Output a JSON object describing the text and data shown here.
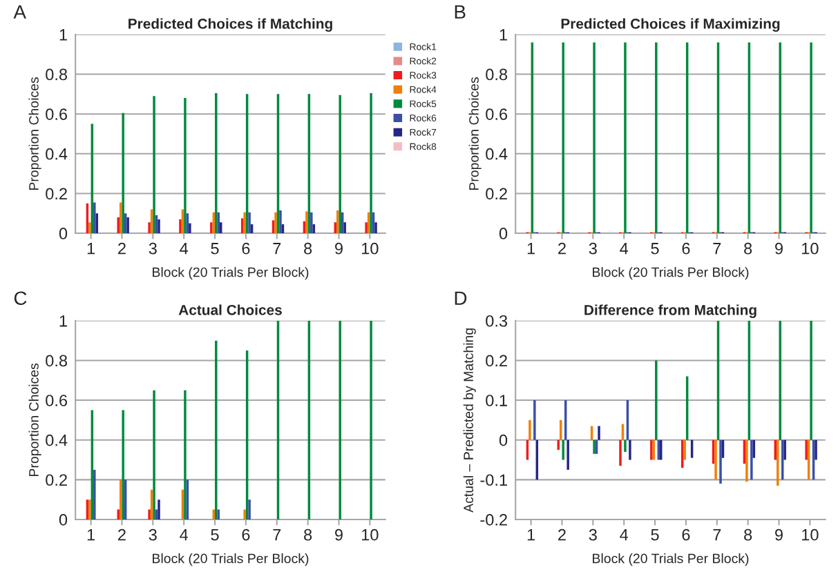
{
  "chart_data": [
    {
      "type": "bar",
      "title": "Predicted Choices if Matching",
      "xlabel": "Block (20 Trials Per Block)",
      "ylabel": "Proportion Choices",
      "annotations": [
        "A"
      ],
      "legend": "right",
      "grid": "y",
      "categories": [
        "1",
        "2",
        "3",
        "4",
        "5",
        "6",
        "7",
        "8",
        "9",
        "10"
      ],
      "ylim": [
        0,
        1
      ],
      "yticks": [
        0,
        0.2,
        0.4,
        0.6,
        0.8,
        1
      ],
      "series": [
        {
          "name": "Rock1",
          "color": "#8db4e2",
          "values": [
            0,
            0,
            0,
            0,
            0,
            0,
            0,
            0,
            0,
            0
          ]
        },
        {
          "name": "Rock2",
          "color": "#e6898a",
          "values": [
            0,
            0,
            0,
            0,
            0,
            0,
            0,
            0,
            0,
            0
          ]
        },
        {
          "name": "Rock3",
          "color": "#ee1c1c",
          "values": [
            0.15,
            0.08,
            0.055,
            0.07,
            0.055,
            0.075,
            0.065,
            0.06,
            0.055,
            0.055
          ]
        },
        {
          "name": "Rock4",
          "color": "#f07f09",
          "values": [
            0.055,
            0.155,
            0.12,
            0.12,
            0.105,
            0.105,
            0.105,
            0.11,
            0.115,
            0.105
          ]
        },
        {
          "name": "Rock5",
          "color": "#008a3e",
          "values": [
            0.55,
            0.605,
            0.69,
            0.68,
            0.705,
            0.7,
            0.7,
            0.7,
            0.695,
            0.705
          ]
        },
        {
          "name": "Rock6",
          "color": "#3a4fa8",
          "values": [
            0.155,
            0.1,
            0.09,
            0.1,
            0.105,
            0.105,
            0.115,
            0.105,
            0.105,
            0.105
          ]
        },
        {
          "name": "Rock7",
          "color": "#262684",
          "values": [
            0.1,
            0.08,
            0.07,
            0.05,
            0.055,
            0.045,
            0.045,
            0.045,
            0.055,
            0.055
          ]
        },
        {
          "name": "Rock8",
          "color": "#f4bcc3",
          "values": [
            0,
            0,
            0,
            0,
            0,
            0,
            0,
            0,
            0,
            0
          ]
        }
      ]
    },
    {
      "type": "bar",
      "title": "Predicted Choices if Maximizing",
      "xlabel": "Block (20 Trials Per Block)",
      "ylabel": "Proportion Choices",
      "annotations": [
        "B"
      ],
      "grid": "y",
      "categories": [
        "1",
        "2",
        "3",
        "4",
        "5",
        "6",
        "7",
        "8",
        "9",
        "10"
      ],
      "ylim": [
        0,
        1
      ],
      "yticks": [
        0,
        0.2,
        0.4,
        0.6,
        0.8,
        1
      ],
      "series": [
        {
          "color": "#8db4e2",
          "values": [
            0,
            0,
            0,
            0,
            0,
            0,
            0,
            0,
            0,
            0
          ]
        },
        {
          "color": "#e6898a",
          "values": [
            0,
            0,
            0,
            0,
            0,
            0,
            0,
            0,
            0,
            0
          ]
        },
        {
          "color": "#ee1c1c",
          "values": [
            0.005,
            0.005,
            0.005,
            0.005,
            0.005,
            0.005,
            0.005,
            0.005,
            0.005,
            0.005
          ]
        },
        {
          "color": "#f07f09",
          "values": [
            0.005,
            0.005,
            0.005,
            0.005,
            0.005,
            0.005,
            0.005,
            0.005,
            0.005,
            0.005
          ]
        },
        {
          "color": "#008a3e",
          "values": [
            0.96,
            0.96,
            0.96,
            0.96,
            0.96,
            0.96,
            0.96,
            0.96,
            0.96,
            0.96
          ]
        },
        {
          "color": "#3a4fa8",
          "values": [
            0.005,
            0.005,
            0.005,
            0.005,
            0.005,
            0.005,
            0.005,
            0.005,
            0.005,
            0.005
          ]
        },
        {
          "color": "#262684",
          "values": [
            0.005,
            0.005,
            0.005,
            0.005,
            0.005,
            0.005,
            0.005,
            0.005,
            0.005,
            0.005
          ]
        },
        {
          "color": "#f4bcc3",
          "values": [
            0,
            0,
            0,
            0,
            0,
            0,
            0,
            0,
            0,
            0
          ]
        }
      ]
    },
    {
      "type": "bar",
      "title": "Actual Choices",
      "xlabel": "Block (20 Trials Per Block)",
      "ylabel": "Proportion Choices",
      "annotations": [
        "C"
      ],
      "grid": "y",
      "categories": [
        "1",
        "2",
        "3",
        "4",
        "5",
        "6",
        "7",
        "8",
        "9",
        "10"
      ],
      "ylim": [
        0,
        1
      ],
      "yticks": [
        0,
        0.2,
        0.4,
        0.6,
        0.8,
        1
      ],
      "series": [
        {
          "color": "#8db4e2",
          "values": [
            0,
            0,
            0,
            0,
            0,
            0,
            0,
            0,
            0,
            0
          ]
        },
        {
          "color": "#e6898a",
          "values": [
            0,
            0,
            0,
            0,
            0,
            0,
            0,
            0,
            0,
            0
          ]
        },
        {
          "color": "#ee1c1c",
          "values": [
            0.1,
            0.05,
            0.05,
            0,
            0,
            0,
            0,
            0,
            0,
            0
          ]
        },
        {
          "color": "#f07f09",
          "values": [
            0.1,
            0.2,
            0.15,
            0.15,
            0.05,
            0.05,
            0,
            0,
            0,
            0
          ]
        },
        {
          "color": "#008a3e",
          "values": [
            0.55,
            0.55,
            0.65,
            0.65,
            0.9,
            0.85,
            1,
            1,
            1,
            1
          ]
        },
        {
          "color": "#3a4fa8",
          "values": [
            0.25,
            0.2,
            0.05,
            0.2,
            0.05,
            0.1,
            0,
            0,
            0,
            0
          ]
        },
        {
          "color": "#262684",
          "values": [
            0,
            0,
            0.1,
            0,
            0,
            0,
            0,
            0,
            0,
            0
          ]
        },
        {
          "color": "#f4bcc3",
          "values": [
            0,
            0,
            0,
            0,
            0,
            0,
            0,
            0,
            0,
            0
          ]
        }
      ]
    },
    {
      "type": "bar",
      "title": "Difference from Matching",
      "xlabel": "Block (20 Trials Per Block)",
      "ylabel": "Actual – Predicted by Matching",
      "annotations": [
        "D"
      ],
      "grid": "y",
      "categories": [
        "1",
        "2",
        "3",
        "4",
        "5",
        "6",
        "7",
        "8",
        "9",
        "10"
      ],
      "ylim": [
        -0.2,
        0.3
      ],
      "yticks": [
        {
          "value": -0.2,
          "label": "-0.2"
        },
        {
          "value": -0.1,
          "label": "-0.1"
        },
        0,
        0.1,
        0.2,
        0.3
      ],
      "series": [
        {
          "color": "#8db4e2",
          "values": [
            0,
            0,
            0,
            0,
            0,
            0,
            0,
            0,
            0,
            0
          ]
        },
        {
          "color": "#e6898a",
          "values": [
            0,
            0,
            0,
            0,
            0,
            0,
            0,
            0,
            0,
            0
          ]
        },
        {
          "color": "#ee1c1c",
          "values": [
            -0.05,
            -0.025,
            0,
            -0.065,
            -0.05,
            -0.07,
            -0.06,
            -0.06,
            -0.05,
            -0.05
          ]
        },
        {
          "color": "#f07f09",
          "values": [
            0.05,
            0.05,
            0.035,
            0.04,
            -0.05,
            -0.05,
            -0.1,
            -0.105,
            -0.115,
            -0.1
          ]
        },
        {
          "color": "#008a3e",
          "values": [
            0,
            -0.05,
            -0.035,
            -0.03,
            0.2,
            0.16,
            0.3,
            0.3,
            0.3,
            0.3
          ]
        },
        {
          "color": "#3a4fa8",
          "values": [
            0.1,
            0.1,
            -0.035,
            0.1,
            -0.05,
            0,
            -0.11,
            -0.1,
            -0.1,
            -0.1
          ]
        },
        {
          "color": "#262684",
          "values": [
            -0.1,
            -0.075,
            0.035,
            -0.05,
            -0.05,
            -0.045,
            -0.045,
            -0.045,
            -0.05,
            -0.05
          ]
        },
        {
          "color": "#f4bcc3",
          "values": [
            0,
            0,
            0,
            0,
            0,
            0,
            0,
            0,
            0,
            0
          ]
        }
      ]
    }
  ]
}
